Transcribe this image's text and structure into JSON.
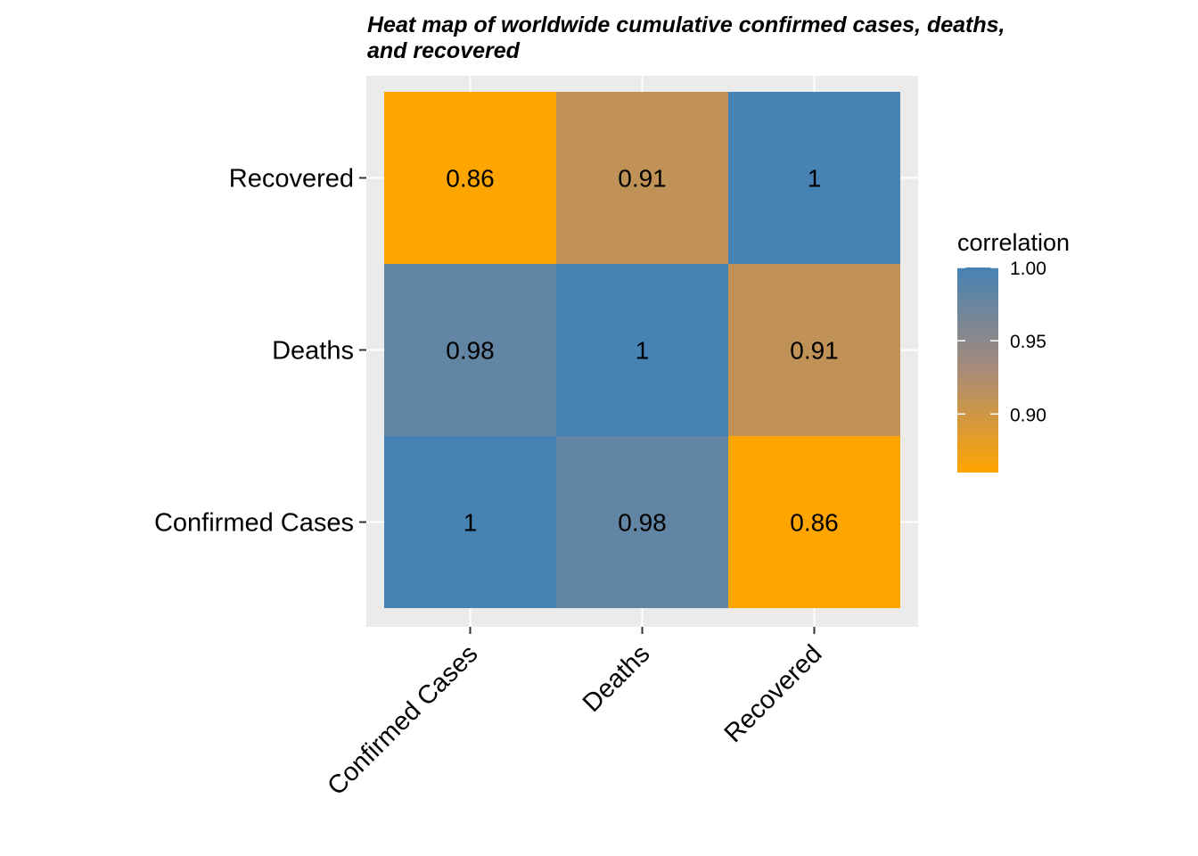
{
  "chart_data": {
    "type": "heatmap",
    "title_lines": [
      "Heat map of worldwide cumulative confirmed cases, deaths,",
      "and recovered"
    ],
    "x_categories": [
      "Confirmed Cases",
      "Deaths",
      "Recovered"
    ],
    "y_categories": [
      "Confirmed Cases",
      "Deaths",
      "Recovered"
    ],
    "cells": [
      {
        "x": "Confirmed Cases",
        "y": "Confirmed Cases",
        "value": 1.0,
        "label": "1"
      },
      {
        "x": "Deaths",
        "y": "Confirmed Cases",
        "value": 0.98,
        "label": "0.98"
      },
      {
        "x": "Recovered",
        "y": "Confirmed Cases",
        "value": 0.86,
        "label": "0.86"
      },
      {
        "x": "Confirmed Cases",
        "y": "Deaths",
        "value": 0.98,
        "label": "0.98"
      },
      {
        "x": "Deaths",
        "y": "Deaths",
        "value": 1.0,
        "label": "1"
      },
      {
        "x": "Recovered",
        "y": "Deaths",
        "value": 0.91,
        "label": "0.91"
      },
      {
        "x": "Confirmed Cases",
        "y": "Recovered",
        "value": 0.86,
        "label": "0.86"
      },
      {
        "x": "Deaths",
        "y": "Recovered",
        "value": 0.91,
        "label": "0.91"
      },
      {
        "x": "Recovered",
        "y": "Recovered",
        "value": 1.0,
        "label": "1"
      }
    ],
    "legend": {
      "title": "correlation",
      "ticks": [
        {
          "value": 1.0,
          "label": "1.00"
        },
        {
          "value": 0.95,
          "label": "0.95"
        },
        {
          "value": 0.9,
          "label": "0.90"
        }
      ],
      "range": [
        0.86,
        1.0
      ],
      "low_color": "#FFA500",
      "mid_color": "#A88B7A",
      "high_color": "#4682B4",
      "placement": "right"
    },
    "panel_background": "#EBEBEB",
    "grid": true
  }
}
